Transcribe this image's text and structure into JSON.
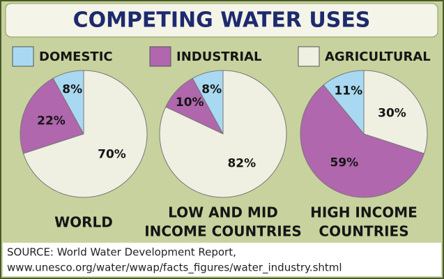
{
  "chart_data": {
    "type": "pie",
    "title": "COMPETING WATER USES",
    "categories": [
      "DOMESTIC",
      "INDUSTRIAL",
      "AGRICULTURAL"
    ],
    "colors": [
      "#a9d9f2",
      "#b067ad",
      "#efefe2"
    ],
    "pies": [
      {
        "label": [
          "WORLD"
        ],
        "values": [
          8,
          22,
          70
        ],
        "value_labels": [
          "8%",
          "22%",
          "70%"
        ]
      },
      {
        "label": [
          "LOW AND MID",
          "INCOME COUNTRIES"
        ],
        "values": [
          8,
          10,
          82
        ],
        "value_labels": [
          "8%",
          "10%",
          "82%"
        ]
      },
      {
        "label": [
          "HIGH INCOME",
          "COUNTRIES"
        ],
        "values": [
          11,
          59,
          30
        ],
        "value_labels": [
          "11%",
          "59%",
          "30%"
        ]
      }
    ],
    "source": [
      "SOURCE: World Water Development Report,",
      "www.unesco.org/water/wwap/facts_figures/water_industry.shtml"
    ]
  }
}
